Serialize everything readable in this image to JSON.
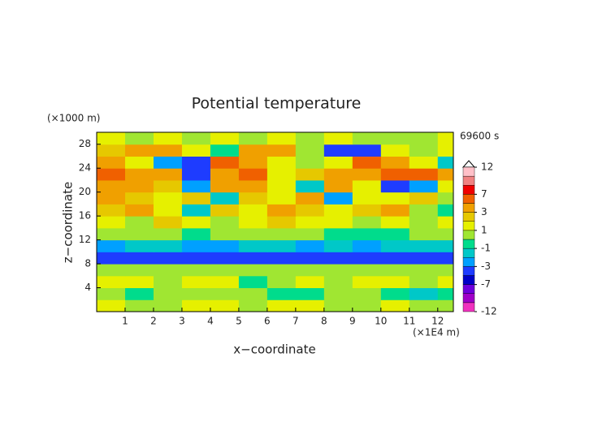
{
  "chart_data": {
    "type": "heatmap",
    "title": "Potential temperature",
    "y_unit": "(×1000 m)",
    "x_unit": "(×1E4 m)",
    "time_label": "69600 s",
    "xlabel": "x−coordinate",
    "ylabel": "z−coordinate",
    "xlim": [
      0,
      12.55
    ],
    "ylim": [
      0,
      30
    ],
    "xticks": [
      1,
      2,
      3,
      4,
      5,
      6,
      7,
      8,
      9,
      10,
      11,
      12
    ],
    "yticks": [
      4,
      8,
      12,
      16,
      20,
      24,
      28
    ],
    "x": [
      0.5,
      1.5,
      2.5,
      3.5,
      4.5,
      5.5,
      6.5,
      7.5,
      8.5,
      9.5,
      10.5,
      11.5,
      12.5
    ],
    "y": [
      1,
      3,
      5,
      7,
      9,
      11,
      13,
      15,
      17,
      19,
      21,
      23,
      25,
      27,
      29
    ],
    "values": [
      [
        1,
        0.5,
        0.5,
        1.5,
        1,
        0.5,
        1.5,
        1,
        0.5,
        0.5,
        1,
        0.5,
        0.5
      ],
      [
        0.5,
        -0.5,
        0.5,
        0.5,
        0.5,
        0.5,
        -0.5,
        -0.5,
        0.5,
        0.5,
        -0.5,
        -1.5,
        -0.5
      ],
      [
        1.5,
        1.5,
        0.5,
        1.5,
        1.5,
        -0.5,
        0.5,
        1.5,
        0.5,
        1.5,
        1.5,
        0.5,
        1.5
      ],
      [
        0.5,
        0.5,
        0.5,
        0.5,
        0.5,
        0.5,
        0.5,
        0.5,
        0.5,
        0.5,
        0.5,
        0.5,
        0.5
      ],
      [
        -3.5,
        -3.5,
        -3.5,
        -3.5,
        -3.5,
        -3.5,
        -3.5,
        -3.5,
        -3.5,
        -3.5,
        -3.5,
        -3.5,
        -3.5
      ],
      [
        -2.5,
        -1.5,
        -1.5,
        -2.5,
        -2.5,
        -1.5,
        -1.5,
        -2.5,
        -1.5,
        -2.5,
        -1.5,
        -1.5,
        -1.5
      ],
      [
        0.5,
        0.5,
        0.5,
        -0.5,
        0.5,
        0.5,
        0.5,
        0.5,
        -0.5,
        -0.5,
        -0.5,
        0.5,
        0.5
      ],
      [
        1.5,
        0.5,
        2.5,
        1.5,
        0.5,
        1.5,
        2.5,
        1.5,
        1.5,
        0.5,
        1.5,
        0.5,
        1.5
      ],
      [
        2.5,
        3.5,
        1.5,
        -1.5,
        2.5,
        1.5,
        3.5,
        2.5,
        1.5,
        2.5,
        3.5,
        0.5,
        -0.5
      ],
      [
        3.5,
        2.5,
        1.5,
        2.5,
        -1.5,
        2.5,
        1.5,
        3.5,
        -2.5,
        1.5,
        1.5,
        2.5,
        0.5
      ],
      [
        4,
        4,
        2.5,
        -2.5,
        4,
        3.5,
        1.5,
        -1.5,
        3.5,
        1.5,
        -3.5,
        -2.5,
        1.5
      ],
      [
        5.5,
        4,
        3.5,
        -4,
        3.5,
        5.5,
        1.5,
        2.5,
        3.5,
        4,
        5.5,
        5.5,
        4
      ],
      [
        3.5,
        1.5,
        -2.5,
        -4,
        6,
        3.5,
        1.5,
        0.5,
        1.5,
        6,
        3.5,
        1.5,
        -1.5
      ],
      [
        2.5,
        4,
        3.5,
        1.5,
        -0.5,
        3.5,
        4,
        0.5,
        -3.5,
        -4,
        1.5,
        0.5,
        1.5
      ],
      [
        1.5,
        0.5,
        1.5,
        0.5,
        1.5,
        0.5,
        1.5,
        0.5,
        1.5,
        0.5,
        0.5,
        0.5,
        1.5
      ]
    ],
    "colorbar": {
      "levels": [
        -12,
        -11,
        -9,
        -7,
        -5,
        -3,
        -2,
        -1,
        0,
        1,
        2,
        3,
        5,
        7,
        9,
        11,
        12
      ],
      "colors": [
        "#f032be",
        "#a000c8",
        "#6e00dc",
        "#0000c8",
        "#1e3cff",
        "#00a0ff",
        "#00c8c8",
        "#00dc8c",
        "#a0e632",
        "#e6f000",
        "#e6c800",
        "#f0a000",
        "#f06000",
        "#f00000",
        "#f08282",
        "#ffc0c8"
      ],
      "ticks": [
        12,
        7,
        3,
        1,
        -1,
        -3,
        -7,
        -12
      ]
    }
  }
}
